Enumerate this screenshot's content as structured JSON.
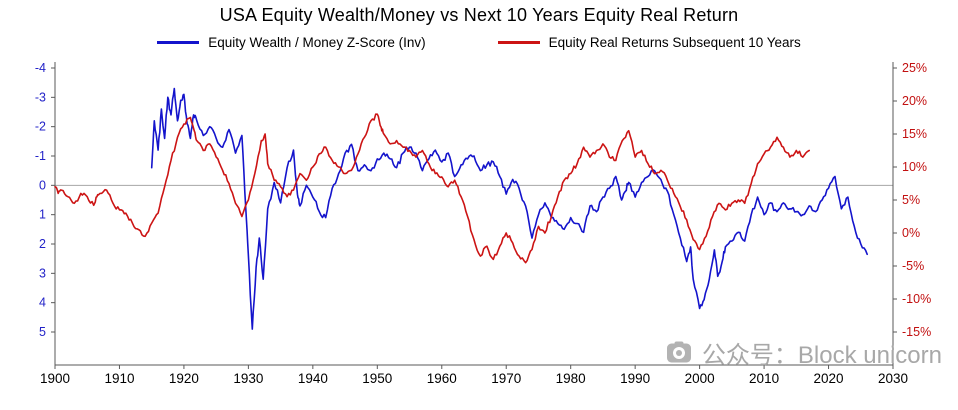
{
  "watermark": {
    "text": "公众号：Block unicorn"
  },
  "chart_data": {
    "type": "line",
    "title": "USA Equity Wealth/Money vs Next 10 Years Equity Real Return",
    "legend_position": "top",
    "grid": {
      "zero_line": true,
      "zero_line_color": "#a6a6a6"
    },
    "x_axis": {
      "min": 1900,
      "max": 2030,
      "ticks": [
        1900,
        1910,
        1920,
        1930,
        1940,
        1950,
        1960,
        1970,
        1980,
        1990,
        2000,
        2010,
        2020,
        2030
      ],
      "tick_color": "#000000"
    },
    "left_axis": {
      "ticks": [
        -4,
        -3,
        -2,
        -1,
        0,
        1,
        2,
        3,
        4,
        5
      ],
      "top_value": -4,
      "bottom_value": 5,
      "inverted": true,
      "tick_color": "#2323c8"
    },
    "right_axis": {
      "ticks": [
        "25%",
        "20%",
        "15%",
        "10%",
        "5%",
        "0%",
        "-5%",
        "-10%",
        "-15%"
      ],
      "values": [
        25,
        20,
        15,
        10,
        5,
        0,
        -5,
        -10,
        -15
      ],
      "tick_color": "#c21010"
    },
    "series": [
      {
        "name": "Equity Wealth / Money Z-Score (Inv)",
        "axis": "left",
        "color": "#1414cc",
        "points": [
          [
            1915,
            -0.6
          ],
          [
            1915.4,
            -2.2
          ],
          [
            1916,
            -1.2
          ],
          [
            1916.5,
            -2.6
          ],
          [
            1917,
            -1.6
          ],
          [
            1917.5,
            -3.0
          ],
          [
            1918,
            -2.4
          ],
          [
            1918.5,
            -3.3
          ],
          [
            1919,
            -2.2
          ],
          [
            1919.5,
            -2.9
          ],
          [
            1920,
            -3.1
          ],
          [
            1920.5,
            -2.1
          ],
          [
            1921,
            -1.6
          ],
          [
            1921.5,
            -2.4
          ],
          [
            1922,
            -2.2
          ],
          [
            1923,
            -1.7
          ],
          [
            1924,
            -2.0
          ],
          [
            1925,
            -1.6
          ],
          [
            1926,
            -1.3
          ],
          [
            1927,
            -1.9
          ],
          [
            1928,
            -1.1
          ],
          [
            1929,
            -1.7
          ],
          [
            1929.6,
            0.8
          ],
          [
            1930,
            2.4
          ],
          [
            1930.6,
            4.9
          ],
          [
            1931.2,
            2.8
          ],
          [
            1931.7,
            1.8
          ],
          [
            1932.3,
            3.2
          ],
          [
            1933,
            0.8
          ],
          [
            1934,
            -0.1
          ],
          [
            1935,
            0.6
          ],
          [
            1936,
            -0.6
          ],
          [
            1937,
            -1.2
          ],
          [
            1937.6,
            0.3
          ],
          [
            1938,
            0.7
          ],
          [
            1939,
            0.0
          ],
          [
            1940,
            0.4
          ],
          [
            1941,
            0.9
          ],
          [
            1942,
            1.1
          ],
          [
            1943,
            0.1
          ],
          [
            1944,
            -0.4
          ],
          [
            1945,
            -1.1
          ],
          [
            1946,
            -1.4
          ],
          [
            1947,
            -0.5
          ],
          [
            1948,
            -0.7
          ],
          [
            1949,
            -0.5
          ],
          [
            1950,
            -0.9
          ],
          [
            1951,
            -1.1
          ],
          [
            1952,
            -0.9
          ],
          [
            1953,
            -0.6
          ],
          [
            1954,
            -1.1
          ],
          [
            1955,
            -1.3
          ],
          [
            1956,
            -1.1
          ],
          [
            1957,
            -0.5
          ],
          [
            1958,
            -0.9
          ],
          [
            1959,
            -1.2
          ],
          [
            1960,
            -0.8
          ],
          [
            1961,
            -1.1
          ],
          [
            1962,
            -0.3
          ],
          [
            1963,
            -0.7
          ],
          [
            1964,
            -0.9
          ],
          [
            1965,
            -1.0
          ],
          [
            1966,
            -0.5
          ],
          [
            1967,
            -0.7
          ],
          [
            1968,
            -0.8
          ],
          [
            1969,
            -0.3
          ],
          [
            1970,
            0.3
          ],
          [
            1971,
            -0.2
          ],
          [
            1972,
            0.1
          ],
          [
            1973,
            0.7
          ],
          [
            1974,
            1.8
          ],
          [
            1975,
            1.0
          ],
          [
            1976,
            0.6
          ],
          [
            1977,
            1.1
          ],
          [
            1978,
            1.3
          ],
          [
            1979,
            1.5
          ],
          [
            1980,
            1.1
          ],
          [
            1981,
            1.3
          ],
          [
            1982,
            1.6
          ],
          [
            1983,
            0.7
          ],
          [
            1984,
            0.9
          ],
          [
            1985,
            0.4
          ],
          [
            1986,
            0.1
          ],
          [
            1987,
            -0.3
          ],
          [
            1987.9,
            0.5
          ],
          [
            1988.5,
            0.2
          ],
          [
            1989,
            -0.1
          ],
          [
            1990,
            0.4
          ],
          [
            1991,
            -0.1
          ],
          [
            1992,
            -0.3
          ],
          [
            1993,
            -0.5
          ],
          [
            1994,
            -0.2
          ],
          [
            1995,
            0.2
          ],
          [
            1996,
            1.0
          ],
          [
            1997,
            1.8
          ],
          [
            1998,
            2.6
          ],
          [
            1998.6,
            2.1
          ],
          [
            1999,
            3.2
          ],
          [
            2000,
            4.2
          ],
          [
            2000.7,
            3.9
          ],
          [
            2001.5,
            3.2
          ],
          [
            2002.3,
            2.2
          ],
          [
            2002.8,
            3.1
          ],
          [
            2003.5,
            2.6
          ],
          [
            2004,
            2.1
          ],
          [
            2005,
            1.9
          ],
          [
            2006,
            1.6
          ],
          [
            2007,
            1.9
          ],
          [
            2008,
            1.0
          ],
          [
            2009,
            0.4
          ],
          [
            2010,
            1.0
          ],
          [
            2011,
            0.6
          ],
          [
            2012,
            0.9
          ],
          [
            2013,
            0.6
          ],
          [
            2014,
            0.8
          ],
          [
            2015,
            0.9
          ],
          [
            2016,
            1.0
          ],
          [
            2017,
            0.7
          ],
          [
            2018,
            0.9
          ],
          [
            2019,
            0.5
          ],
          [
            2020,
            0.1
          ],
          [
            2021,
            -0.3
          ],
          [
            2022,
            0.8
          ],
          [
            2023,
            0.4
          ],
          [
            2024,
            1.4
          ],
          [
            2025,
            2.0
          ],
          [
            2026,
            2.35
          ]
        ]
      },
      {
        "name": "Equity Real Returns Subsequent 10 Years",
        "axis": "right",
        "color": "#cc1414",
        "points": [
          [
            1900,
            7.0
          ],
          [
            1900.5,
            6.0
          ],
          [
            1901,
            6.5
          ],
          [
            1902,
            5.5
          ],
          [
            1903,
            4.5
          ],
          [
            1904,
            6.0
          ],
          [
            1905,
            5.5
          ],
          [
            1906,
            4.2
          ],
          [
            1906.5,
            5.5
          ],
          [
            1907,
            6.0
          ],
          [
            1908,
            6.5
          ],
          [
            1909,
            4.5
          ],
          [
            1910,
            3.5
          ],
          [
            1911,
            3.0
          ],
          [
            1912,
            1.5
          ],
          [
            1913,
            0.5
          ],
          [
            1914,
            -0.5
          ],
          [
            1915,
            1.5
          ],
          [
            1916,
            3.0
          ],
          [
            1917,
            7.0
          ],
          [
            1918,
            11.0
          ],
          [
            1919,
            14.5
          ],
          [
            1920,
            16.5
          ],
          [
            1921,
            17.5
          ],
          [
            1921.6,
            15.5
          ],
          [
            1922,
            14.0
          ],
          [
            1923,
            12.5
          ],
          [
            1924,
            13.5
          ],
          [
            1925,
            11.5
          ],
          [
            1926,
            9.5
          ],
          [
            1927,
            7.5
          ],
          [
            1928,
            4.5
          ],
          [
            1929,
            2.5
          ],
          [
            1930,
            5.0
          ],
          [
            1931,
            9.0
          ],
          [
            1932,
            14.0
          ],
          [
            1932.6,
            15.0
          ],
          [
            1933,
            10.5
          ],
          [
            1934,
            8.0
          ],
          [
            1935,
            7.0
          ],
          [
            1936,
            5.5
          ],
          [
            1937,
            6.5
          ],
          [
            1938,
            9.0
          ],
          [
            1939,
            8.0
          ],
          [
            1940,
            10.0
          ],
          [
            1941,
            12.0
          ],
          [
            1942,
            13.0
          ],
          [
            1943,
            11.0
          ],
          [
            1944,
            10.0
          ],
          [
            1945,
            9.0
          ],
          [
            1946,
            9.5
          ],
          [
            1947,
            12.0
          ],
          [
            1948,
            14.5
          ],
          [
            1949,
            17.0
          ],
          [
            1950,
            18.0
          ],
          [
            1950.6,
            16.0
          ],
          [
            1951,
            15.0
          ],
          [
            1952,
            13.5
          ],
          [
            1953,
            14.0
          ],
          [
            1954,
            13.0
          ],
          [
            1955,
            12.5
          ],
          [
            1956,
            11.5
          ],
          [
            1957,
            12.5
          ],
          [
            1958,
            10.5
          ],
          [
            1959,
            9.0
          ],
          [
            1960,
            8.5
          ],
          [
            1961,
            7.0
          ],
          [
            1962,
            8.0
          ],
          [
            1963,
            5.5
          ],
          [
            1964,
            2.5
          ],
          [
            1965,
            -1.0
          ],
          [
            1966,
            -3.5
          ],
          [
            1967,
            -2.0
          ],
          [
            1968,
            -4.0
          ],
          [
            1969,
            -2.0
          ],
          [
            1970,
            0.0
          ],
          [
            1971,
            -1.5
          ],
          [
            1972,
            -3.5
          ],
          [
            1973,
            -4.5
          ],
          [
            1974,
            -2.5
          ],
          [
            1975,
            1.0
          ],
          [
            1976,
            0.0
          ],
          [
            1977,
            2.5
          ],
          [
            1978,
            5.5
          ],
          [
            1979,
            8.0
          ],
          [
            1980,
            9.0
          ],
          [
            1981,
            10.5
          ],
          [
            1982,
            13.0
          ],
          [
            1983,
            11.5
          ],
          [
            1984,
            12.5
          ],
          [
            1985,
            13.5
          ],
          [
            1986,
            11.5
          ],
          [
            1987,
            11.0
          ],
          [
            1988,
            14.0
          ],
          [
            1989,
            15.5
          ],
          [
            1990,
            11.5
          ],
          [
            1991,
            12.5
          ],
          [
            1992,
            10.5
          ],
          [
            1993,
            9.0
          ],
          [
            1994,
            9.5
          ],
          [
            1995,
            8.0
          ],
          [
            1996,
            6.0
          ],
          [
            1997,
            4.0
          ],
          [
            1998,
            2.0
          ],
          [
            1999,
            -1.0
          ],
          [
            2000,
            -2.5
          ],
          [
            2001,
            -0.5
          ],
          [
            2002,
            2.5
          ],
          [
            2003,
            4.5
          ],
          [
            2004,
            3.5
          ],
          [
            2005,
            4.5
          ],
          [
            2006,
            5.0
          ],
          [
            2007,
            4.5
          ],
          [
            2008,
            7.5
          ],
          [
            2009,
            10.5
          ],
          [
            2010,
            12.0
          ],
          [
            2011,
            13.0
          ],
          [
            2012,
            14.5
          ],
          [
            2013,
            13.0
          ],
          [
            2014,
            11.5
          ],
          [
            2015,
            12.5
          ],
          [
            2016,
            11.5
          ],
          [
            2017,
            12.5
          ]
        ]
      }
    ]
  }
}
